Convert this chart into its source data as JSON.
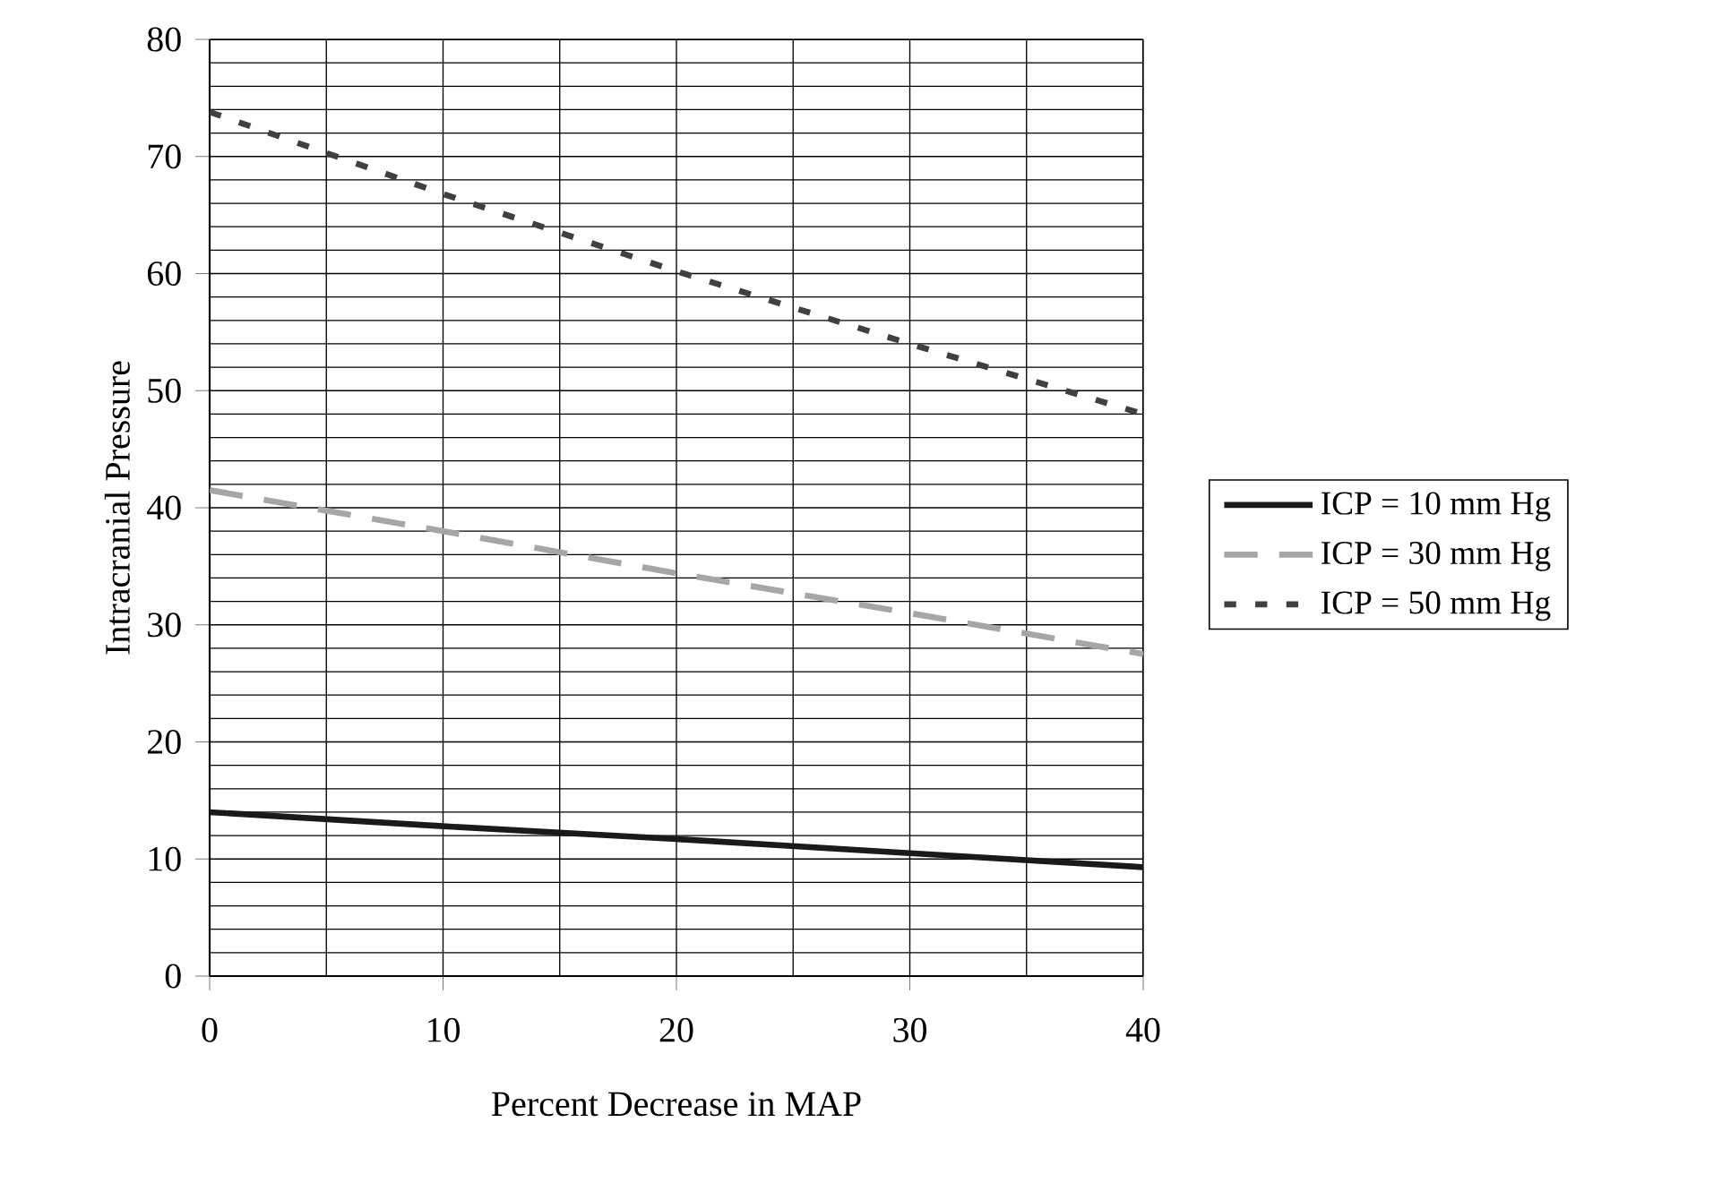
{
  "chart_data": {
    "type": "line",
    "xlabel": "Percent Decrease in MAP",
    "ylabel": "Intracranial Pressure",
    "x": [
      0,
      10,
      20,
      30,
      40
    ],
    "series": [
      {
        "name": "ICP = 10 mm Hg",
        "color": "#1a1a1a",
        "line_style": "solid",
        "values": [
          14,
          12.8,
          11.7,
          10.5,
          9.3
        ]
      },
      {
        "name": "ICP = 30 mm Hg",
        "color": "#a6a6a6",
        "line_style": "dashed",
        "values": [
          41.5,
          38,
          34.4,
          31,
          27.5
        ]
      },
      {
        "name": "ICP = 50 mm Hg",
        "color": "#404040",
        "line_style": "dotted",
        "values": [
          73.8,
          66.8,
          60.2,
          54,
          48
        ]
      }
    ],
    "xlim": [
      0,
      40
    ],
    "xticks": [
      0,
      10,
      20,
      30,
      40
    ],
    "ylim": [
      0,
      80
    ],
    "yticks": [
      0,
      10,
      20,
      30,
      40,
      50,
      60,
      70,
      80
    ],
    "grid": true,
    "legend": "right",
    "marker": "none"
  }
}
